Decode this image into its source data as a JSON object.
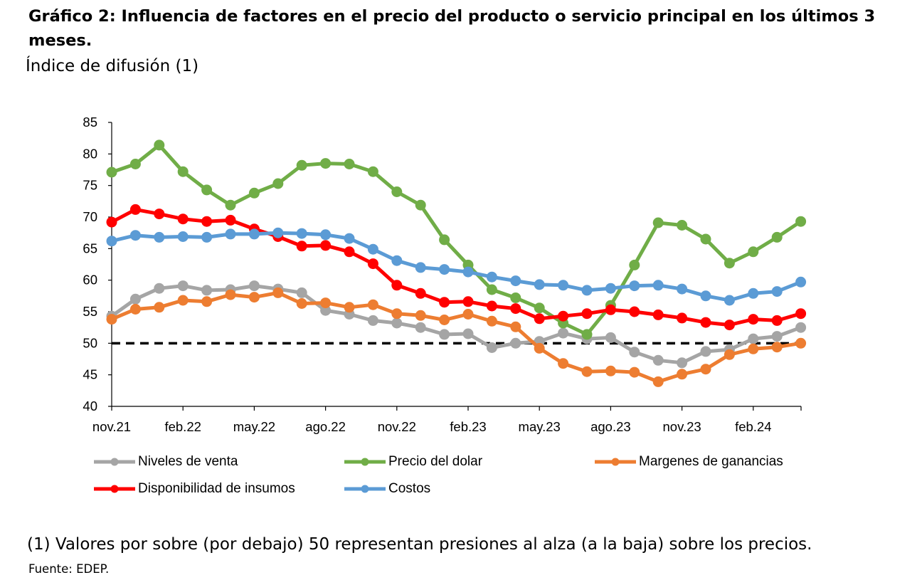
{
  "title": "Gráfico 2: Influencia de factores en el precio del producto o servicio principal en los últimos 3 meses.",
  "subtitle": "Índice de difusión (1)",
  "note": "(1) Valores por sobre (por debajo) 50 representan presiones al alza (a la baja) sobre los precios.",
  "source": "Fuente: EDEP.",
  "chart_data": {
    "type": "line",
    "x": [
      "nov.21",
      "dic.21",
      "ene.22",
      "feb.22",
      "mar.22",
      "abr.22",
      "may.22",
      "jun.22",
      "jul.22",
      "ago.22",
      "sep.22",
      "oct.22",
      "nov.22",
      "dic.22",
      "ene.23",
      "feb.23",
      "mar.23",
      "abr.23",
      "may.23",
      "jun.23",
      "jul.23",
      "ago.23",
      "sep.23",
      "oct.23",
      "nov.23",
      "dic.23",
      "ene.24",
      "feb.24",
      "mar.24",
      "abr.24"
    ],
    "x_tick_labels": [
      "nov.21",
      "feb.22",
      "may.22",
      "ago.22",
      "nov.22",
      "feb.23",
      "may.23",
      "ago.23",
      "nov.23",
      "feb.24"
    ],
    "ylim": [
      40,
      85
    ],
    "y_ticks": [
      40,
      45,
      50,
      55,
      60,
      65,
      70,
      75,
      80,
      85
    ],
    "reference_line": 50,
    "legend_placement": "bottom",
    "series": [
      {
        "name": "Niveles de venta",
        "color": "#a5a5a5",
        "values": [
          54.3,
          57.0,
          58.7,
          59.1,
          58.4,
          58.5,
          59.1,
          58.6,
          58.0,
          55.2,
          54.6,
          53.6,
          53.2,
          52.5,
          51.4,
          51.5,
          49.3,
          50.0,
          50.3,
          51.6,
          50.7,
          50.9,
          48.6,
          47.3,
          46.9,
          48.7,
          49.0,
          50.7,
          51.1,
          52.5
        ]
      },
      {
        "name": "Precio del dolar",
        "color": "#70ad47",
        "values": [
          77.1,
          78.4,
          81.4,
          77.2,
          74.3,
          71.9,
          73.8,
          75.3,
          78.2,
          78.5,
          78.4,
          77.2,
          74.0,
          71.9,
          66.4,
          62.4,
          58.5,
          57.2,
          55.6,
          53.2,
          51.4,
          56.0,
          62.4,
          69.1,
          68.7,
          66.5,
          62.7,
          64.5,
          66.8,
          69.3
        ]
      },
      {
        "name": "Margenes de ganancias",
        "color": "#ed7d31",
        "values": [
          53.8,
          55.4,
          55.7,
          56.8,
          56.6,
          57.7,
          57.3,
          58.0,
          56.3,
          56.4,
          55.7,
          56.1,
          54.7,
          54.4,
          53.7,
          54.6,
          53.5,
          52.6,
          49.2,
          46.8,
          45.5,
          45.6,
          45.4,
          43.9,
          45.1,
          45.9,
          48.2,
          49.1,
          49.4,
          50.0
        ]
      },
      {
        "name": "Disponibilidad de insumos",
        "color": "#ff0000",
        "values": [
          69.2,
          71.2,
          70.5,
          69.7,
          69.3,
          69.5,
          68.1,
          66.9,
          65.4,
          65.5,
          64.5,
          62.6,
          59.2,
          57.9,
          56.5,
          56.6,
          55.9,
          55.5,
          53.9,
          54.3,
          54.7,
          55.3,
          55.0,
          54.5,
          54.0,
          53.3,
          52.9,
          53.8,
          53.6,
          54.7
        ]
      },
      {
        "name": "Costos",
        "color": "#5b9bd5",
        "values": [
          66.2,
          67.1,
          66.8,
          66.9,
          66.8,
          67.3,
          67.3,
          67.5,
          67.4,
          67.2,
          66.6,
          64.9,
          63.1,
          62.0,
          61.7,
          61.3,
          60.5,
          59.9,
          59.3,
          59.2,
          58.4,
          58.7,
          59.1,
          59.2,
          58.6,
          57.5,
          56.8,
          57.9,
          58.2,
          59.7
        ]
      }
    ]
  }
}
